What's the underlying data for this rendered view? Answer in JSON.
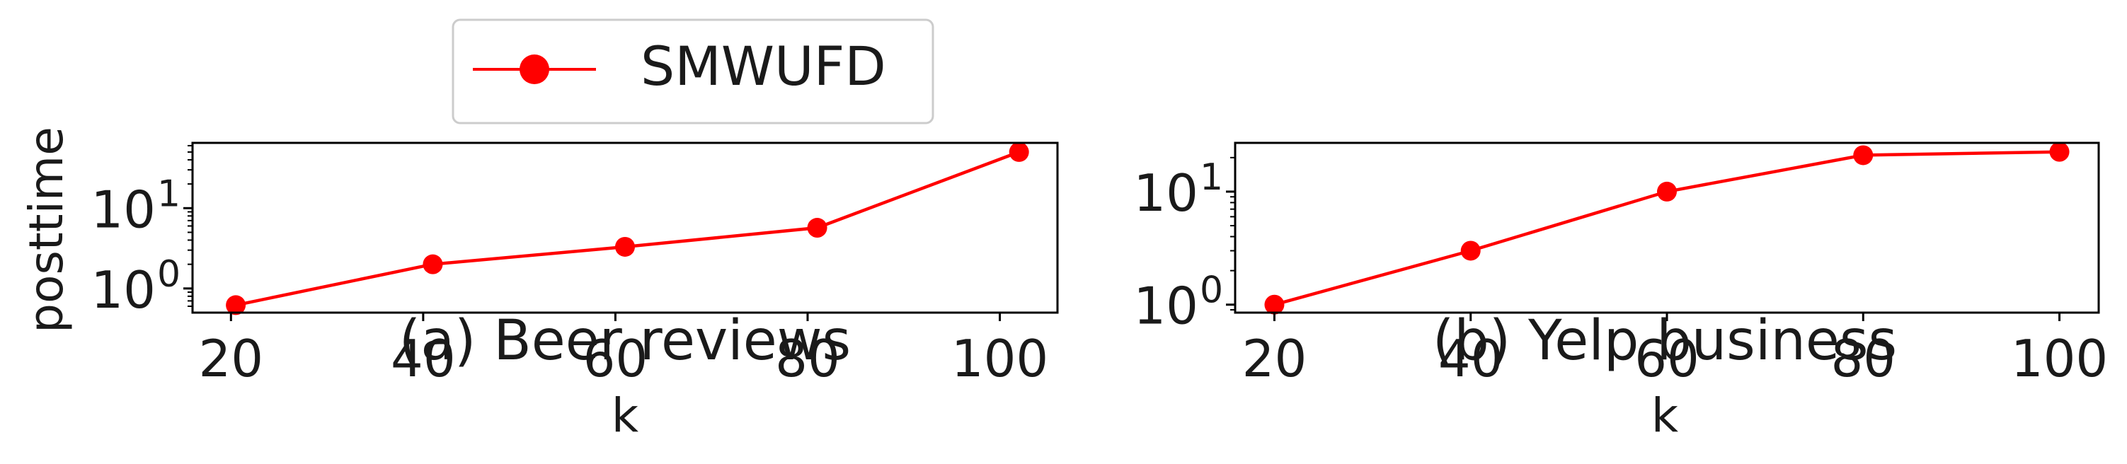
{
  "legend": {
    "label": "SMWUFD",
    "placement": "top-center",
    "color": "#ff0000"
  },
  "series_color": "#ff0000",
  "chart_data": [
    {
      "type": "line",
      "subtitle": "(a) Beer reviews",
      "xlabel": "k",
      "ylabel": "posttime",
      "yscale": "log",
      "grid": false,
      "xlim": [
        16,
        106
      ],
      "ylim": [
        0.5,
        65
      ],
      "x_ticks": [
        20,
        40,
        60,
        80,
        100
      ],
      "x_tick_labels": [
        "20",
        "40",
        "60",
        "80",
        "100"
      ],
      "y_ticks": [
        1,
        10
      ],
      "y_tick_labels": [
        [
          "10",
          "0"
        ],
        [
          "10",
          "1"
        ]
      ],
      "series": [
        {
          "name": "SMWUFD",
          "x": [
            20.5,
            41,
            61,
            81,
            102
          ],
          "y": [
            0.62,
            2.0,
            3.3,
            5.7,
            50
          ]
        }
      ]
    },
    {
      "type": "line",
      "subtitle": "(b) Yelp business",
      "xlabel": "k",
      "ylabel": "",
      "yscale": "log",
      "grid": false,
      "xlim": [
        16,
        104
      ],
      "ylim": [
        0.85,
        27
      ],
      "x_ticks": [
        20,
        40,
        60,
        80,
        100
      ],
      "x_tick_labels": [
        "20",
        "40",
        "60",
        "80",
        "100"
      ],
      "y_ticks": [
        1,
        10
      ],
      "y_tick_labels": [
        [
          "10",
          "0"
        ],
        [
          "10",
          "1"
        ]
      ],
      "series": [
        {
          "name": "SMWUFD",
          "x": [
            20,
            40,
            60,
            80,
            100
          ],
          "y": [
            1.0,
            3.0,
            10.0,
            21.0,
            22.5
          ]
        }
      ]
    }
  ]
}
